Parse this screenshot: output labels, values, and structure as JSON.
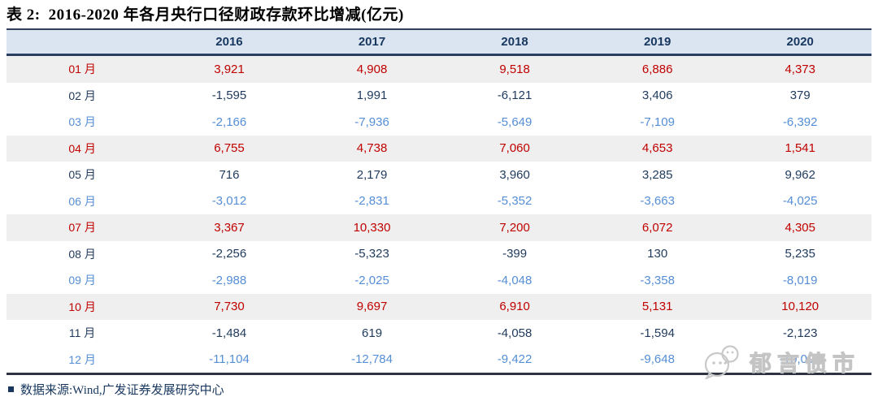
{
  "title": {
    "label": "表 2:",
    "text": "2016-2020 年各月央行口径财政存款环比增减(亿元)"
  },
  "table": {
    "columns": [
      "",
      "2016",
      "2017",
      "2018",
      "2019",
      "2020"
    ],
    "rows": [
      {
        "month": "01 月",
        "style": "red",
        "values": [
          "3,921",
          "4,908",
          "9,518",
          "6,886",
          "4,373"
        ]
      },
      {
        "month": "02 月",
        "style": "navy",
        "values": [
          "-1,595",
          "1,991",
          "-6,121",
          "3,406",
          "379"
        ]
      },
      {
        "month": "03 月",
        "style": "blue",
        "values": [
          "-2,166",
          "-7,936",
          "-5,649",
          "-7,109",
          "-6,392"
        ]
      },
      {
        "month": "04 月",
        "style": "red",
        "values": [
          "6,755",
          "4,738",
          "7,060",
          "4,653",
          "1,541"
        ]
      },
      {
        "month": "05 月",
        "style": "navy",
        "values": [
          "716",
          "2,179",
          "3,960",
          "3,285",
          "9,962"
        ]
      },
      {
        "month": "06 月",
        "style": "blue",
        "values": [
          "-3,012",
          "-2,831",
          "-5,352",
          "-3,663",
          "-4,025"
        ]
      },
      {
        "month": "07 月",
        "style": "red",
        "values": [
          "3,367",
          "10,330",
          "7,200",
          "6,072",
          "4,305"
        ]
      },
      {
        "month": "08 月",
        "style": "navy",
        "values": [
          "-2,256",
          "-5,323",
          "-399",
          "130",
          "5,235"
        ]
      },
      {
        "month": "09 月",
        "style": "blue",
        "values": [
          "-2,988",
          "-2,025",
          "-4,048",
          "-3,358",
          "-8,019"
        ]
      },
      {
        "month": "10 月",
        "style": "red",
        "values": [
          "7,730",
          "9,697",
          "6,910",
          "5,131",
          "10,120"
        ]
      },
      {
        "month": "11 月",
        "style": "navy",
        "values": [
          "-1,484",
          "619",
          "-4,058",
          "-1,594",
          "-2,123"
        ]
      },
      {
        "month": "12 月",
        "style": "blue",
        "values": [
          "-11,104",
          "-12,784",
          "-9,422",
          "-9,648",
          "-10,095"
        ]
      }
    ]
  },
  "footer": {
    "source": "数据来源:Wind,广发证券发展研究中心"
  },
  "watermark": {
    "text": "郁言债市"
  },
  "colors": {
    "positive_red": "#c00000",
    "negative_blue": "#558ed5",
    "navy_text": "#1f3a5c",
    "header_bg": "#dbe5f1",
    "header_text": "#17375e",
    "stripe_bg": "#efefef",
    "border": "#2a3f5f",
    "watermark_gray": "#c9c9c9"
  },
  "chart_data": {
    "type": "table",
    "title": "表 2: 2016-2020 年各月央行口径财政存款环比增减(亿元)",
    "categories": [
      "01月",
      "02月",
      "03月",
      "04月",
      "05月",
      "06月",
      "07月",
      "08月",
      "09月",
      "10月",
      "11月",
      "12月"
    ],
    "series": [
      {
        "name": "2016",
        "values": [
          3921,
          -1595,
          -2166,
          6755,
          716,
          -3012,
          3367,
          -2256,
          -2988,
          7730,
          -1484,
          -11104
        ]
      },
      {
        "name": "2017",
        "values": [
          4908,
          1991,
          -7936,
          4738,
          2179,
          -2831,
          10330,
          -5323,
          -2025,
          9697,
          619,
          -12784
        ]
      },
      {
        "name": "2018",
        "values": [
          9518,
          -6121,
          -5649,
          7060,
          3960,
          -5352,
          7200,
          -399,
          -4048,
          6910,
          -4058,
          -9422
        ]
      },
      {
        "name": "2019",
        "values": [
          6886,
          3406,
          -7109,
          4653,
          3285,
          -3663,
          6072,
          130,
          -3358,
          5131,
          -1594,
          -9648
        ]
      },
      {
        "name": "2020",
        "values": [
          4373,
          379,
          -6392,
          1541,
          9962,
          -4025,
          4305,
          5235,
          -8019,
          10120,
          -2123,
          -10095
        ]
      }
    ],
    "source": "数据来源:Wind,广发证券发展研究中心",
    "notes": "2020-12 cell partially obscured by watermark in source image"
  }
}
